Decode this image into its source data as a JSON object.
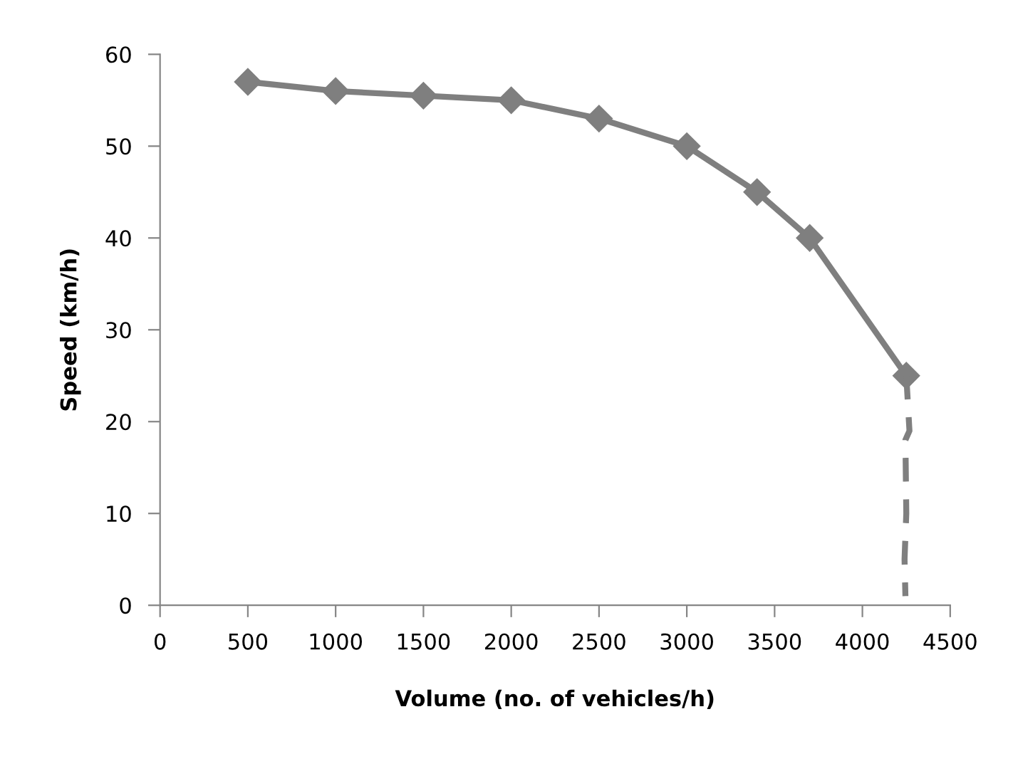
{
  "chart_data": {
    "type": "line",
    "xlabel": "Volume (no. of vehicles/h)",
    "ylabel": "Speed (km/h)",
    "series": [
      {
        "color": "#7f7f7f",
        "marker": "diamond",
        "line_style": "solid",
        "x": [
          500,
          1000,
          1500,
          2000,
          2500,
          3000,
          3400,
          3700,
          4250
        ],
        "values": [
          57,
          56,
          55.5,
          55,
          53,
          50,
          45,
          40,
          25
        ]
      },
      {
        "color": "#7f7f7f",
        "marker": "none",
        "line_style": "dashed",
        "x": [
          4250,
          4265,
          4268,
          4245,
          4250,
          4240,
          4245
        ],
        "values": [
          25,
          20,
          19,
          18,
          10,
          5,
          1
        ]
      }
    ],
    "xlim": [
      0,
      4500
    ],
    "xticks": [
      0,
      500,
      1000,
      1500,
      2000,
      2500,
      3000,
      3500,
      4000,
      4500
    ],
    "ylim": [
      0,
      60
    ],
    "yticks": [
      0,
      10,
      20,
      30,
      40,
      50,
      60
    ],
    "grid": false,
    "legend": false
  }
}
